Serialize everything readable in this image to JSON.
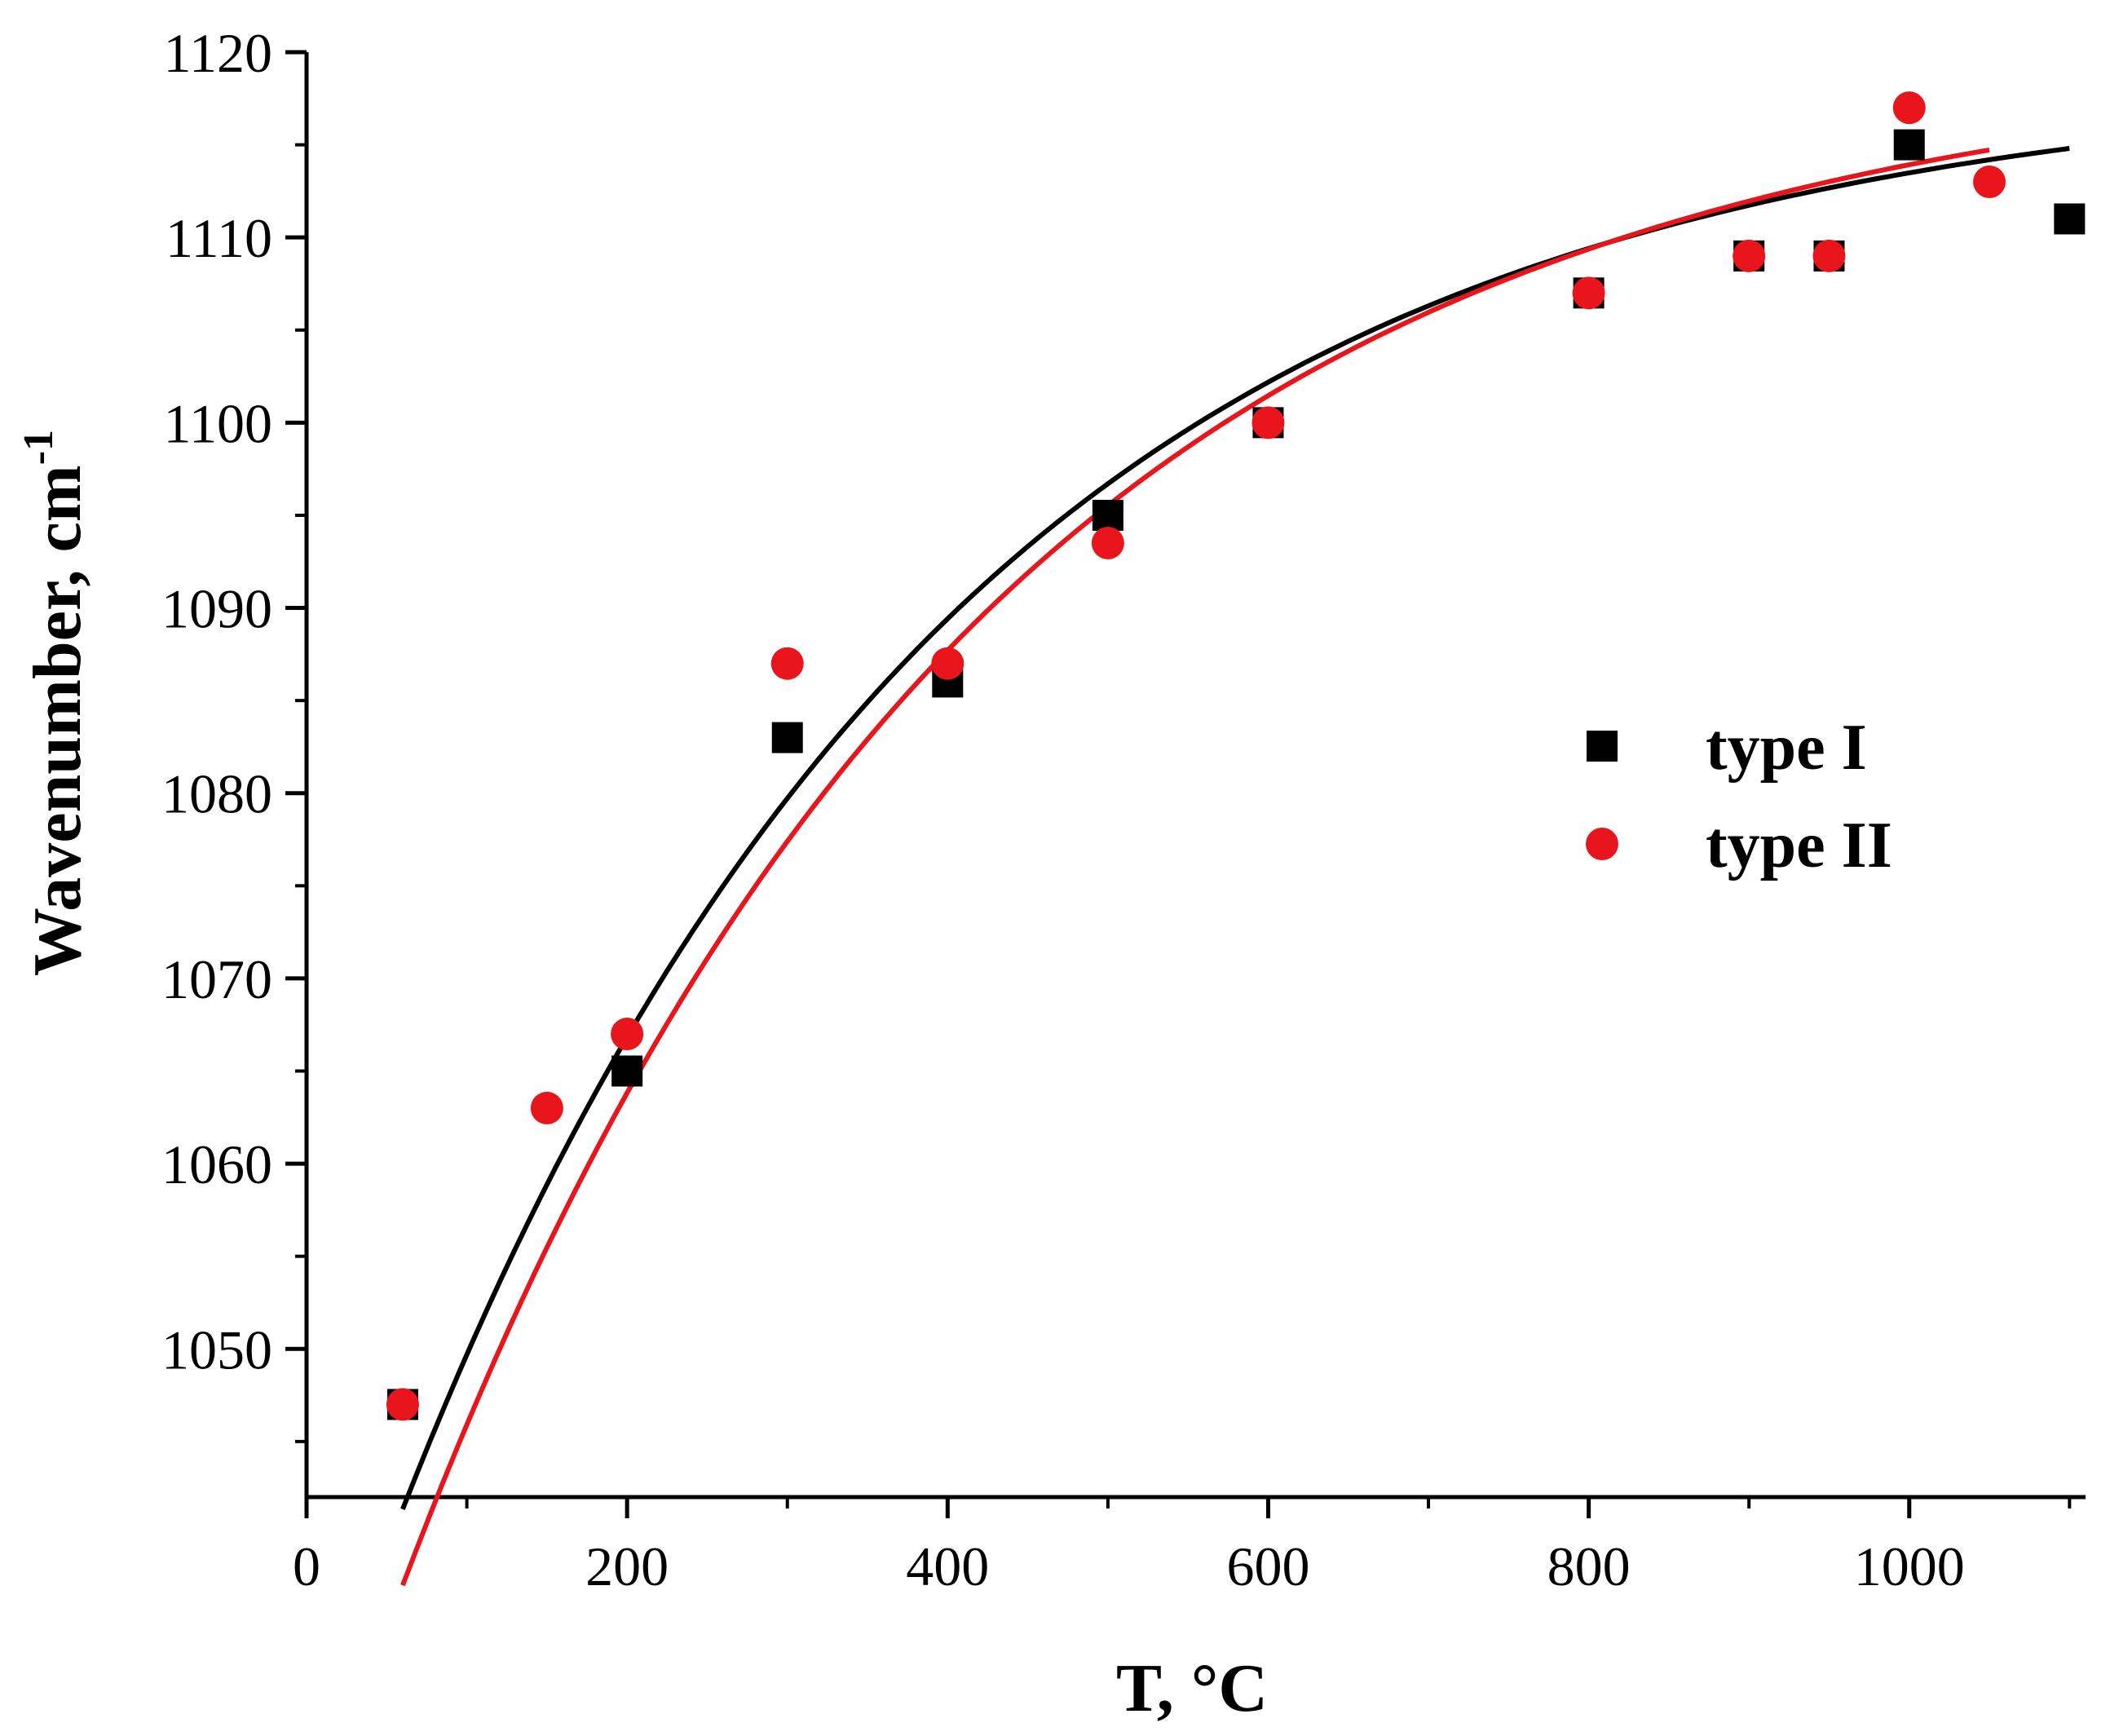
{
  "chart_data": {
    "type": "scatter",
    "title": "",
    "xlabel": "T, °C",
    "ylabel": "Wavenumber, cm",
    "ylabel_superscript": "-1",
    "xlim": [
      0,
      1110
    ],
    "ylim": [
      1042,
      1120
    ],
    "x_major_ticks": [
      0,
      200,
      400,
      600,
      800,
      1000
    ],
    "x_tick_labels": [
      "0",
      "200",
      "400",
      "600",
      "800",
      "1000"
    ],
    "x_minor_ticks": [
      100,
      300,
      500,
      700,
      900,
      1100
    ],
    "y_major_ticks": [
      1050,
      1060,
      1070,
      1080,
      1090,
      1100,
      1110,
      1120
    ],
    "y_tick_labels": [
      "1050",
      "1060",
      "1070",
      "1080",
      "1090",
      "1100",
      "1110",
      "1120"
    ],
    "y_minor_ticks": [
      1045,
      1055,
      1065,
      1075,
      1085,
      1095,
      1105,
      1115
    ],
    "grid": false,
    "legend_position": "center-right",
    "series": [
      {
        "name": "type I",
        "marker": "square",
        "color": "#000000",
        "points": [
          [
            60,
            1047
          ],
          [
            200,
            1065
          ],
          [
            300,
            1083
          ],
          [
            400,
            1086
          ],
          [
            500,
            1095
          ],
          [
            600,
            1100
          ],
          [
            800,
            1107
          ],
          [
            900,
            1109
          ],
          [
            950,
            1109
          ],
          [
            1000,
            1115
          ],
          [
            1100,
            1111
          ]
        ],
        "fit": {
          "model": "exponential",
          "y_inf": 1118.8,
          "amplitude": 91.9,
          "tau": 350.8,
          "x_start": 60,
          "x_end": 1100
        }
      },
      {
        "name": "type II",
        "marker": "circle",
        "color": "#e8161c",
        "points": [
          [
            60,
            1047
          ],
          [
            150,
            1063
          ],
          [
            200,
            1067
          ],
          [
            300,
            1087
          ],
          [
            400,
            1087
          ],
          [
            500,
            1093.5
          ],
          [
            600,
            1100
          ],
          [
            800,
            1107
          ],
          [
            900,
            1109
          ],
          [
            950,
            1109
          ],
          [
            1000,
            1117
          ],
          [
            1050,
            1113
          ]
        ],
        "fit": {
          "model": "exponential",
          "y_inf": 1120.1,
          "amplitude": 97.8,
          "tau": 362.0,
          "x_start": 60,
          "x_end": 1050
        }
      }
    ]
  }
}
